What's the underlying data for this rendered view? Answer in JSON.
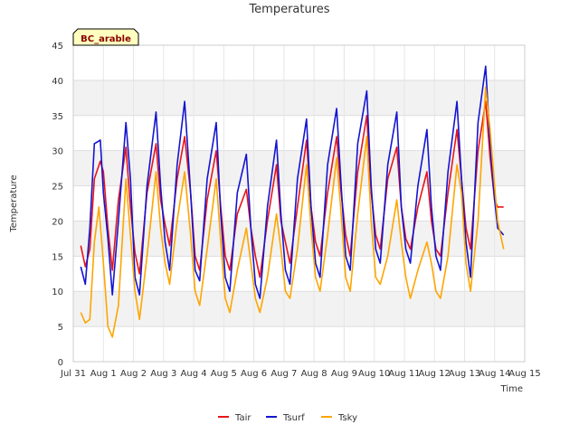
{
  "chart_data": {
    "type": "line",
    "title": "Temperatures",
    "xlabel": "Time",
    "ylabel": "Temperature",
    "annotation": "BC_arable",
    "xlim": [
      0,
      15
    ],
    "ylim": [
      0,
      45
    ],
    "grid": true,
    "legend_position": "bottom-center",
    "x_ticks": [
      {
        "v": 0,
        "label": "Jul 31"
      },
      {
        "v": 1,
        "label": "Aug 1"
      },
      {
        "v": 2,
        "label": "Aug 2"
      },
      {
        "v": 3,
        "label": "Aug 3"
      },
      {
        "v": 4,
        "label": "Aug 4"
      },
      {
        "v": 5,
        "label": "Aug 5"
      },
      {
        "v": 6,
        "label": "Aug 6"
      },
      {
        "v": 7,
        "label": "Aug 7"
      },
      {
        "v": 8,
        "label": "Aug 8"
      },
      {
        "v": 9,
        "label": "Aug 9"
      },
      {
        "v": 10,
        "label": "Aug 10"
      },
      {
        "v": 11,
        "label": "Aug 11"
      },
      {
        "v": 12,
        "label": "Aug 12"
      },
      {
        "v": 13,
        "label": "Aug 13"
      },
      {
        "v": 14,
        "label": "Aug 14"
      },
      {
        "v": 15,
        "label": "Aug 15"
      }
    ],
    "y_ticks": [
      0,
      5,
      10,
      15,
      20,
      25,
      30,
      35,
      40,
      45
    ],
    "series": [
      {
        "name": "Tair",
        "color": "#e8141b",
        "x": [
          0.25,
          0.4,
          0.55,
          0.7,
          0.9,
          1.0,
          1.15,
          1.3,
          1.5,
          1.75,
          1.9,
          2.05,
          2.2,
          2.45,
          2.75,
          2.9,
          3.05,
          3.2,
          3.45,
          3.7,
          3.9,
          4.05,
          4.2,
          4.45,
          4.75,
          4.9,
          5.05,
          5.2,
          5.45,
          5.75,
          5.9,
          6.05,
          6.2,
          6.45,
          6.75,
          6.9,
          7.05,
          7.2,
          7.45,
          7.75,
          7.9,
          8.05,
          8.2,
          8.45,
          8.75,
          8.9,
          9.05,
          9.2,
          9.45,
          9.75,
          9.9,
          10.05,
          10.2,
          10.45,
          10.75,
          10.9,
          11.05,
          11.2,
          11.45,
          11.75,
          11.9,
          12.05,
          12.2,
          12.45,
          12.75,
          12.9,
          13.05,
          13.2,
          13.45,
          13.7,
          13.85,
          14.0,
          14.1,
          14.3
        ],
        "y": [
          16.5,
          13.5,
          16,
          26,
          28.5,
          27,
          19,
          13,
          23,
          30.5,
          22,
          15.5,
          12.5,
          24,
          31,
          23,
          19.5,
          16.5,
          26,
          32,
          24,
          15,
          13,
          23,
          30,
          22,
          15,
          13,
          21,
          24.5,
          19,
          15,
          12,
          20,
          28,
          20,
          17,
          14,
          22,
          31.5,
          22,
          17,
          15,
          24,
          32,
          24,
          18,
          15,
          27,
          35,
          24,
          18,
          16,
          26,
          30.5,
          22,
          17.5,
          16,
          22,
          27,
          20,
          16,
          15,
          24,
          33,
          26,
          19,
          16,
          30,
          37,
          29,
          23,
          22,
          22
        ]
      },
      {
        "name": "Tsurf",
        "color": "#1414d2",
        "x": [
          0.25,
          0.4,
          0.55,
          0.7,
          0.9,
          1.0,
          1.15,
          1.3,
          1.5,
          1.75,
          1.9,
          2.05,
          2.2,
          2.45,
          2.75,
          2.9,
          3.05,
          3.2,
          3.45,
          3.7,
          3.9,
          4.05,
          4.2,
          4.45,
          4.75,
          4.9,
          5.05,
          5.2,
          5.45,
          5.75,
          5.9,
          6.05,
          6.2,
          6.45,
          6.75,
          6.9,
          7.05,
          7.2,
          7.45,
          7.75,
          7.9,
          8.05,
          8.2,
          8.45,
          8.75,
          8.9,
          9.05,
          9.2,
          9.45,
          9.75,
          9.9,
          10.05,
          10.2,
          10.45,
          10.75,
          10.9,
          11.05,
          11.2,
          11.45,
          11.75,
          11.9,
          12.05,
          12.2,
          12.45,
          12.75,
          12.9,
          13.05,
          13.2,
          13.45,
          13.7,
          13.85,
          14.0,
          14.1,
          14.3
        ],
        "y": [
          13.5,
          11,
          19,
          31,
          31.5,
          24,
          17.5,
          9.5,
          20,
          34,
          26,
          12,
          9.5,
          25,
          35.5,
          25,
          17,
          13,
          28,
          37,
          24,
          13,
          11.5,
          26,
          34,
          21,
          12,
          10,
          24,
          29.5,
          19,
          11,
          9,
          22,
          31.5,
          21,
          13,
          11,
          26,
          34.5,
          22,
          14,
          12,
          28,
          36,
          25,
          15,
          13,
          31,
          38.5,
          25,
          16,
          14,
          28,
          35.5,
          22,
          16,
          14,
          25,
          33,
          22,
          15,
          13,
          27,
          37,
          26,
          17,
          12,
          34,
          42,
          31,
          23,
          19,
          18
        ]
      },
      {
        "name": "Tsky",
        "color": "#ffa500",
        "x": [
          0.25,
          0.4,
          0.55,
          0.7,
          0.85,
          1.0,
          1.15,
          1.3,
          1.5,
          1.75,
          1.9,
          2.05,
          2.2,
          2.45,
          2.75,
          2.9,
          3.05,
          3.2,
          3.45,
          3.7,
          3.9,
          4.05,
          4.2,
          4.45,
          4.75,
          4.9,
          5.05,
          5.2,
          5.45,
          5.75,
          5.9,
          6.05,
          6.2,
          6.45,
          6.75,
          6.9,
          7.05,
          7.2,
          7.45,
          7.75,
          7.9,
          8.05,
          8.2,
          8.45,
          8.75,
          8.9,
          9.05,
          9.2,
          9.45,
          9.75,
          9.9,
          10.05,
          10.2,
          10.45,
          10.75,
          10.9,
          11.05,
          11.2,
          11.45,
          11.75,
          11.9,
          12.05,
          12.2,
          12.45,
          12.75,
          12.9,
          13.05,
          13.2,
          13.45,
          13.7,
          13.85,
          14.0,
          14.1,
          14.3
        ],
        "y": [
          7,
          5.5,
          6,
          17,
          22,
          14,
          5,
          3.5,
          8,
          26,
          18,
          10,
          6,
          15,
          27,
          19,
          14,
          11,
          20,
          27,
          18,
          10,
          8,
          16,
          26,
          17,
          9,
          7,
          13,
          19,
          14,
          9,
          7,
          12,
          21,
          16,
          10,
          9,
          16,
          28,
          19,
          12,
          10,
          18,
          29,
          21,
          12,
          10,
          21,
          32,
          20,
          12,
          11,
          15,
          23,
          17,
          12,
          9,
          13,
          17,
          14,
          10,
          9,
          15,
          28,
          24,
          14,
          10,
          20,
          39,
          33,
          25,
          20,
          16
        ]
      }
    ]
  }
}
